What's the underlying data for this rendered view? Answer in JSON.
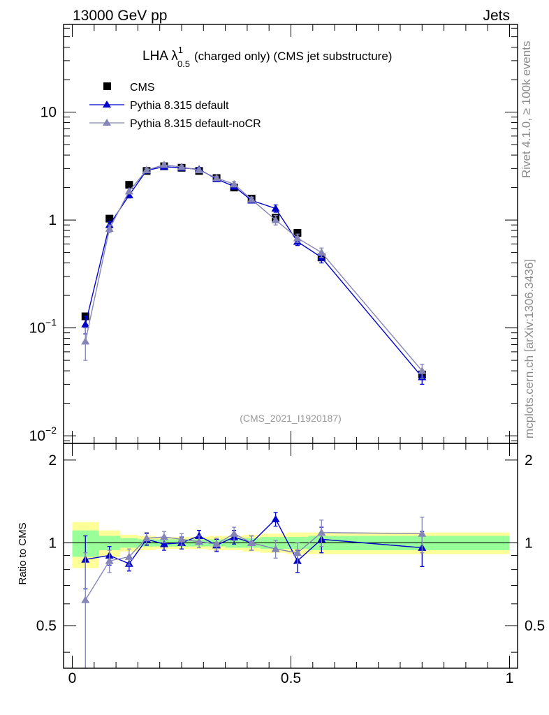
{
  "header": {
    "energy": "13000 GeV pp",
    "process": "Jets"
  },
  "side_labels": {
    "rivet": "Rivet 4.1.0, ≥ 100k events",
    "source": "mcplots.cern.ch [arXiv:1306.3436]"
  },
  "chart_data": {
    "type": "scatter",
    "title": "LHA λ",
    "title_superscript": "1",
    "title_subscript": "0.5",
    "title_rest": "(charged only) (CMS jet substructure)",
    "analysis_id": "(CMS_2021_I1920187)",
    "xlabel": "",
    "ylabel": "",
    "ratio_ylabel": "Ratio to CMS",
    "xlim": [
      0,
      1
    ],
    "ylim": [
      0.0085,
      65
    ],
    "ratio_ylim": [
      0.35,
      2.3
    ],
    "x_ticks": [
      "0",
      "0.5",
      "1"
    ],
    "y_ticks": [
      {
        "base": "10",
        "exp": "−2"
      },
      {
        "base": "10",
        "exp": "−1"
      },
      {
        "base": "1",
        "exp": ""
      },
      {
        "base": "10",
        "exp": ""
      }
    ],
    "ratio_ticks": [
      "0.5",
      "1",
      "2"
    ],
    "legend": [
      "CMS",
      "Pythia 8.315 default",
      "Pythia 8.315 default-noCR"
    ],
    "colors": {
      "data": "#000000",
      "default": "#0000cc",
      "noCR": "#8585b8",
      "band_inner": "#99ff99",
      "band_outer": "#ffff99"
    },
    "x": [
      0.03,
      0.085,
      0.13,
      0.17,
      0.21,
      0.25,
      0.29,
      0.33,
      0.37,
      0.41,
      0.465,
      0.515,
      0.57,
      0.8
    ],
    "bin_edges": [
      0.0,
      0.06,
      0.11,
      0.15,
      0.19,
      0.23,
      0.27,
      0.31,
      0.35,
      0.39,
      0.43,
      0.49,
      0.54,
      0.6,
      1.0
    ],
    "series": [
      {
        "name": "CMS",
        "values": [
          0.128,
          1.03,
          2.12,
          2.85,
          3.15,
          3.05,
          2.85,
          2.45,
          2.0,
          1.58,
          1.05,
          0.76,
          0.45,
          0.037
        ],
        "errors": [
          0.01,
          0.04,
          0.06,
          0.08,
          0.08,
          0.08,
          0.08,
          0.07,
          0.06,
          0.05,
          0.04,
          0.03,
          0.03,
          0.003
        ],
        "ratio_inner": [
          0.11,
          0.06,
          0.04,
          0.03,
          0.03,
          0.03,
          0.03,
          0.03,
          0.04,
          0.04,
          0.05,
          0.05,
          0.06,
          0.06
        ],
        "ratio_outer": [
          0.19,
          0.11,
          0.07,
          0.06,
          0.05,
          0.05,
          0.05,
          0.06,
          0.06,
          0.07,
          0.08,
          0.09,
          0.09,
          0.09
        ]
      },
      {
        "name": "Pythia 8.315 default",
        "values": [
          0.108,
          0.9,
          1.7,
          2.88,
          3.12,
          3.05,
          2.95,
          2.4,
          2.05,
          1.52,
          1.28,
          0.63,
          0.45,
          0.035
        ],
        "errors": [
          0.02,
          0.07,
          0.1,
          0.1,
          0.1,
          0.1,
          0.12,
          0.1,
          0.12,
          0.08,
          0.1,
          0.05,
          0.05,
          0.005
        ],
        "ratio": [
          0.87,
          0.9,
          0.84,
          1.03,
          0.99,
          1.0,
          1.06,
          0.98,
          1.05,
          1.0,
          1.22,
          0.86,
          1.03,
          0.96
        ],
        "ratio_err": [
          0.19,
          0.07,
          0.05,
          0.05,
          0.05,
          0.05,
          0.05,
          0.05,
          0.06,
          0.06,
          0.07,
          0.08,
          0.11,
          0.14
        ]
      },
      {
        "name": "Pythia 8.315 default-noCR",
        "values": [
          0.075,
          0.83,
          1.85,
          2.9,
          3.25,
          3.1,
          2.9,
          2.45,
          2.15,
          1.55,
          1.0,
          0.68,
          0.5,
          0.04
        ],
        "errors": [
          0.025,
          0.07,
          0.1,
          0.1,
          0.1,
          0.1,
          0.12,
          0.1,
          0.12,
          0.08,
          0.1,
          0.06,
          0.05,
          0.006
        ],
        "ratio": [
          0.62,
          0.86,
          0.89,
          1.04,
          1.05,
          1.03,
          1.01,
          0.99,
          1.08,
          1.0,
          0.95,
          0.92,
          1.09,
          1.08
        ],
        "ratio_err": [
          0.3,
          0.08,
          0.06,
          0.05,
          0.05,
          0.05,
          0.05,
          0.05,
          0.06,
          0.06,
          0.07,
          0.08,
          0.12,
          0.16
        ]
      }
    ]
  }
}
